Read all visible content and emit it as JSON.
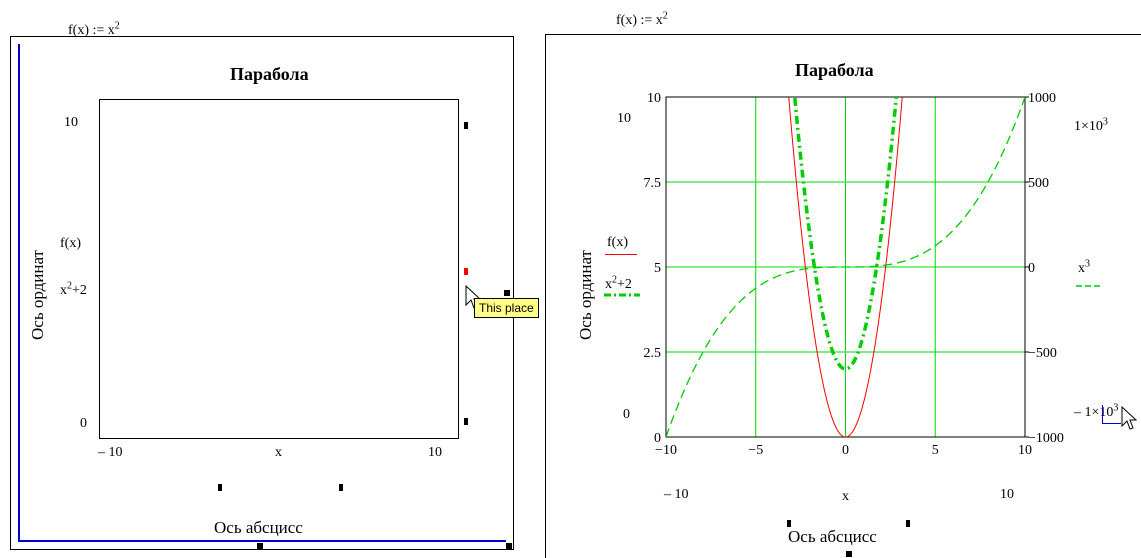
{
  "left": {
    "def_text": "f(x) := x",
    "def_exp": "2",
    "title": "Парабола",
    "y_axis_label": "Ось ординат",
    "x_axis_label": "Ось абсцисс",
    "y_top": "10",
    "y_bottom": "0",
    "x_left": "– 10",
    "x_right": "10",
    "x_var": "x",
    "legend_fx": "f(x)",
    "legend_x2_base": "x",
    "legend_x2_exp": "2",
    "legend_x2_rest": "+2",
    "tooltip": "This place"
  },
  "right": {
    "def_text": "f(x) := x",
    "def_exp": "2",
    "title": "Парабола",
    "y_axis_label": "Ось ординат",
    "x_axis_label": "Ось абсцисс",
    "ymin_field": "0",
    "ymax_field": "10",
    "xmin_field": "– 10",
    "xmax_field": "10",
    "x_var": "x",
    "legend_fx": "f(x)",
    "legend_x2_base": "x",
    "legend_x2_exp": "2",
    "legend_x2_rest": "+2",
    "legend_x3_base": "x",
    "legend_x3_exp": "3",
    "right_top_field_base": "1×10",
    "right_top_field_exp": "3",
    "right_bottom_field_base": "– 1×10",
    "right_bottom_field_exp": "3"
  },
  "chart_data": {
    "type": "line",
    "title": "Парабола",
    "xlabel": "Ось абсцисс",
    "ylabel": "Ось ординат",
    "xlim": [
      -10,
      10
    ],
    "ylim": [
      0,
      10
    ],
    "y2lim": [
      -1000,
      1000
    ],
    "x_ticks": [
      -10,
      -5,
      0,
      5,
      10
    ],
    "y_ticks": [
      0,
      2.5,
      5,
      7.5,
      10
    ],
    "y_tick_labels": [
      "0",
      "2.5",
      "5",
      "7.5",
      "10"
    ],
    "x_tick_labels": [
      "−10",
      "−5",
      "0",
      "5",
      "10"
    ],
    "y2_ticks": [
      -1000,
      -500,
      0,
      500,
      1000
    ],
    "y2_tick_labels": [
      "−1000",
      "−500",
      "0",
      "500",
      "1000"
    ],
    "grid": true,
    "series": [
      {
        "name": "f(x)",
        "formula": "x^2",
        "axis": "left",
        "color": "#ff0000",
        "style": "solid"
      },
      {
        "name": "x^2+2",
        "formula": "x^2+2",
        "axis": "left",
        "color": "#00cc00",
        "style": "dash-dot-thick"
      },
      {
        "name": "x^3",
        "formula": "x^3",
        "axis": "right",
        "color": "#00cc00",
        "style": "dashed"
      }
    ],
    "colors": {
      "grid": "#00dd00",
      "axis_frame": "#000000",
      "left_plot_border": "#0000cc"
    }
  }
}
